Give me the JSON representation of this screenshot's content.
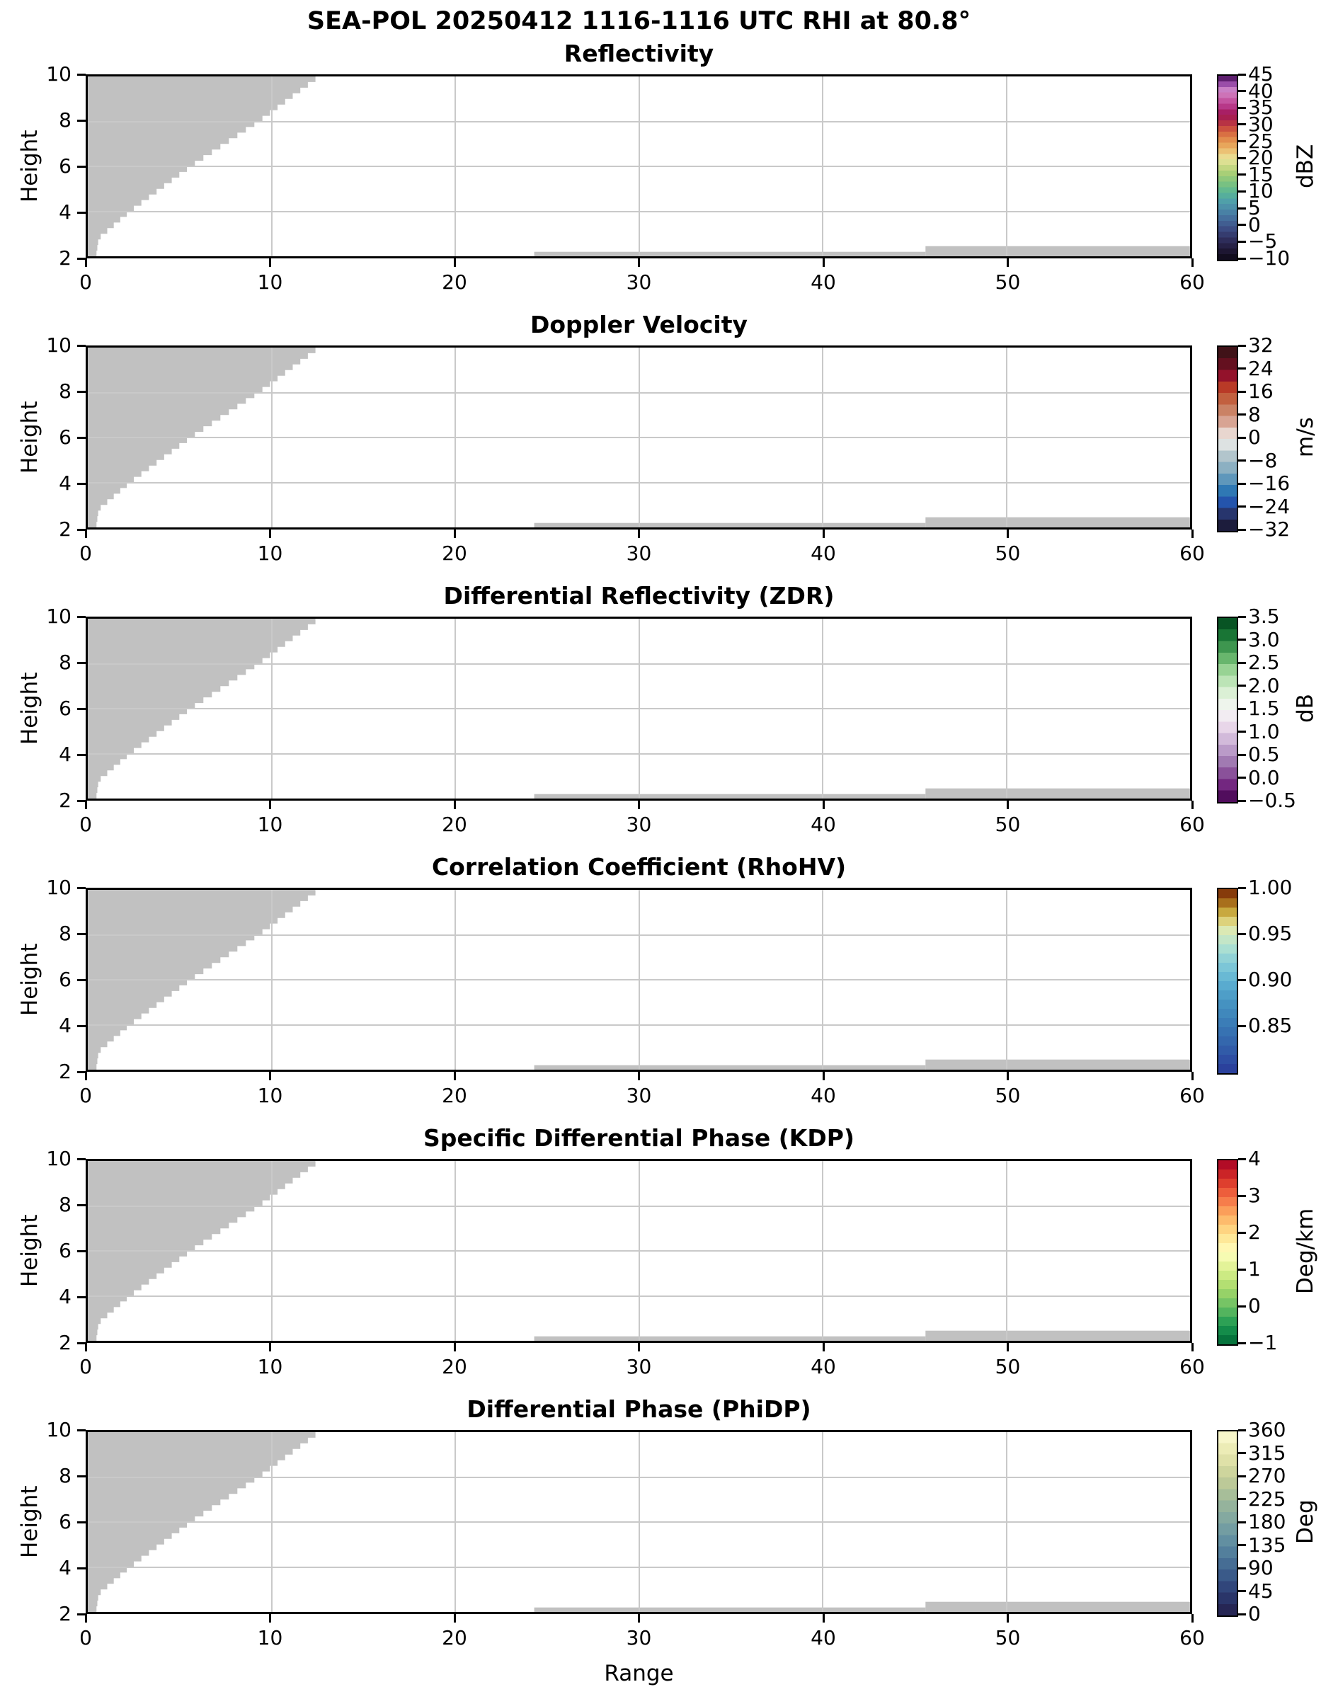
{
  "figure": {
    "suptitle": "SEA-POL 20250412 1116-1116 UTC RHI at 80.8°",
    "xlabel": "Range",
    "ylabel": "Height",
    "background_color": "#ffffff",
    "missing_data_color": "#c1c1c1",
    "gridline_color": "#c9c9c9"
  },
  "chart_data": {
    "type": "heatmap",
    "title": "SEA-POL 20250412 1116-1116 UTC RHI at 80.8°",
    "xlabel": "Range",
    "ylabel": "Height",
    "x_range": [
      0,
      60
    ],
    "y_range": [
      2,
      10
    ],
    "x_ticks": [
      0,
      10,
      20,
      30,
      40,
      50,
      60
    ],
    "x_tick_labels": [
      "0",
      "10",
      "20",
      "30",
      "40",
      "50",
      "60"
    ],
    "y_ticks": [
      2,
      4,
      6,
      8,
      10
    ],
    "y_tick_labels": [
      "2",
      "4",
      "6",
      "8",
      "10"
    ],
    "grid": true,
    "field_values": "all panels show no echo: entire displayed field is either white (clear) or gray masked (no data)",
    "masked_regions": {
      "color": "#c1c1c1",
      "wedge_boundary_points_xh": [
        [
          0.45,
          2.0
        ],
        [
          0.6,
          2.8
        ],
        [
          2.3,
          4.0
        ],
        [
          5.6,
          6.0
        ],
        [
          9.3,
          8.0
        ],
        [
          12.6,
          10.0
        ]
      ],
      "wedge_step_height": 0.25,
      "bottom_strips": [
        {
          "x0": 24.3,
          "x1": 45.6,
          "h_top": 2.2
        },
        {
          "x0": 45.6,
          "x1": 60.0,
          "h_top": 2.45
        }
      ]
    },
    "panels": [
      {
        "title": "Reflectivity",
        "unit": "dBZ",
        "vmin": -10,
        "vmax": 45,
        "cbar_ticks": [
          45,
          40,
          35,
          30,
          25,
          20,
          15,
          10,
          5,
          0,
          -5,
          -10
        ],
        "cbar_tick_labels": [
          "45",
          "40",
          "35",
          "30",
          "25",
          "20",
          "15",
          "10",
          "5",
          "0",
          "−5",
          "−10"
        ],
        "bands": 33,
        "discrete": false,
        "stops": [
          [
            -10,
            "#0c0916"
          ],
          [
            -7,
            "#201938"
          ],
          [
            -4,
            "#2f2e5c"
          ],
          [
            -1,
            "#3b4a82"
          ],
          [
            2,
            "#446a9a"
          ],
          [
            5,
            "#4b8aa9"
          ],
          [
            7.5,
            "#50a0a9"
          ],
          [
            10,
            "#59b595"
          ],
          [
            13,
            "#7ec37e"
          ],
          [
            16,
            "#aad077"
          ],
          [
            18.5,
            "#d2db88"
          ],
          [
            20,
            "#e9e79e"
          ],
          [
            22,
            "#ecc97c"
          ],
          [
            24,
            "#e9a95c"
          ],
          [
            26,
            "#e18a4c"
          ],
          [
            28,
            "#d66740"
          ],
          [
            30,
            "#c4423f"
          ],
          [
            32,
            "#a81f4c"
          ],
          [
            34,
            "#a61d61"
          ],
          [
            36,
            "#b93a8c"
          ],
          [
            38,
            "#c85ba6"
          ],
          [
            40,
            "#d184c4"
          ],
          [
            41,
            "#c77fc6"
          ],
          [
            42.5,
            "#9a4ea9"
          ],
          [
            44,
            "#632277"
          ],
          [
            45,
            "#421049"
          ]
        ]
      },
      {
        "title": "Doppler Velocity",
        "unit": "m/s",
        "vmin": -32,
        "vmax": 32,
        "cbar_ticks": [
          32,
          24,
          16,
          8,
          0,
          -8,
          -16,
          -24,
          -32
        ],
        "cbar_tick_labels": [
          "32",
          "24",
          "16",
          "8",
          "0",
          "−8",
          "−16",
          "−24",
          "−32"
        ],
        "bands": 16,
        "discrete": true,
        "stops": [
          [
            -32,
            "#1c1c3c"
          ],
          [
            -28,
            "#27356d"
          ],
          [
            -24,
            "#2454ac"
          ],
          [
            -20,
            "#2f78b4"
          ],
          [
            -16,
            "#5f97bb"
          ],
          [
            -12,
            "#8cb0c2"
          ],
          [
            -8,
            "#b2c5cc"
          ],
          [
            -4,
            "#dde2e2"
          ],
          [
            0,
            "#e8d6cf"
          ],
          [
            4,
            "#d8a493"
          ],
          [
            8,
            "#ca8265"
          ],
          [
            12,
            "#c2603f"
          ],
          [
            16,
            "#b93a27"
          ],
          [
            20,
            "#93122b"
          ],
          [
            24,
            "#64101f"
          ],
          [
            28,
            "#401218"
          ]
        ]
      },
      {
        "title": "Differential Reflectivity (ZDR)",
        "unit": "dB",
        "vmin": -0.5,
        "vmax": 3.5,
        "cbar_ticks": [
          3.5,
          3.0,
          2.5,
          2.0,
          1.5,
          1.0,
          0.5,
          0.0,
          -0.5
        ],
        "cbar_tick_labels": [
          "3.5",
          "3.0",
          "2.5",
          "2.0",
          "1.5",
          "1.0",
          "0.5",
          "0.0",
          "−0.5"
        ],
        "bands": 16,
        "discrete": false,
        "stops": [
          [
            -0.5,
            "#40004b"
          ],
          [
            -0.1,
            "#762a83"
          ],
          [
            0.3,
            "#9970ab"
          ],
          [
            0.7,
            "#c2a5cf"
          ],
          [
            1.1,
            "#e7d4e8"
          ],
          [
            1.5,
            "#f7f7f7"
          ],
          [
            1.9,
            "#d9f0d3"
          ],
          [
            2.3,
            "#a6dba0"
          ],
          [
            2.7,
            "#5aae61"
          ],
          [
            3.1,
            "#1b7837"
          ],
          [
            3.5,
            "#00441b"
          ]
        ]
      },
      {
        "title": "Correlation Coefficient (RhoHV)",
        "unit": "",
        "vmin": 0.8,
        "vmax": 1.0,
        "cbar_ticks": [
          1.0,
          0.95,
          0.9,
          0.85
        ],
        "cbar_tick_labels": [
          "1.00",
          "0.95",
          "0.90",
          "0.85"
        ],
        "bands": 20,
        "discrete": false,
        "stops": [
          [
            0.8,
            "#2a3a98"
          ],
          [
            0.82,
            "#2f55a6"
          ],
          [
            0.85,
            "#3878b4"
          ],
          [
            0.88,
            "#4897c4"
          ],
          [
            0.9,
            "#5fb2d2"
          ],
          [
            0.92,
            "#85ccd8"
          ],
          [
            0.935,
            "#aadfd2"
          ],
          [
            0.95,
            "#cfeac2"
          ],
          [
            0.958,
            "#e2e9ac"
          ],
          [
            0.965,
            "#ddd27c"
          ],
          [
            0.975,
            "#c8a93f"
          ],
          [
            0.985,
            "#a86f1c"
          ],
          [
            0.993,
            "#8c440d"
          ],
          [
            1.0,
            "#772405"
          ]
        ]
      },
      {
        "title": "Specific Differential Phase (KDP)",
        "unit": "Deg/km",
        "vmin": -1,
        "vmax": 4,
        "cbar_ticks": [
          4,
          3,
          2,
          1,
          0,
          -1
        ],
        "cbar_tick_labels": [
          "4",
          "3",
          "2",
          "1",
          "0",
          "−1"
        ],
        "bands": 20,
        "discrete": false,
        "stops": [
          [
            -1,
            "#006837"
          ],
          [
            -0.5,
            "#1a9850"
          ],
          [
            0,
            "#66bd63"
          ],
          [
            0.5,
            "#a6d96a"
          ],
          [
            1,
            "#d9ef8b"
          ],
          [
            1.5,
            "#ffffbf"
          ],
          [
            2,
            "#fee08b"
          ],
          [
            2.5,
            "#fdae61"
          ],
          [
            3,
            "#f46d43"
          ],
          [
            3.5,
            "#d73027"
          ],
          [
            4,
            "#a50026"
          ]
        ]
      },
      {
        "title": "Differential Phase (PhiDP)",
        "unit": "Deg",
        "vmin": 0,
        "vmax": 360,
        "cbar_ticks": [
          360,
          315,
          270,
          225,
          180,
          135,
          90,
          45,
          0
        ],
        "cbar_tick_labels": [
          "360",
          "315",
          "270",
          "225",
          "180",
          "135",
          "90",
          "45",
          "0"
        ],
        "bands": 16,
        "discrete": false,
        "stops": [
          [
            0,
            "#241f49"
          ],
          [
            45,
            "#2c3c74"
          ],
          [
            90,
            "#3f6490"
          ],
          [
            135,
            "#5a88a0"
          ],
          [
            180,
            "#7ba4a2"
          ],
          [
            225,
            "#9db89a"
          ],
          [
            270,
            "#c6cf97"
          ],
          [
            315,
            "#e7e7ad"
          ],
          [
            360,
            "#fcfbd2"
          ]
        ]
      }
    ]
  }
}
